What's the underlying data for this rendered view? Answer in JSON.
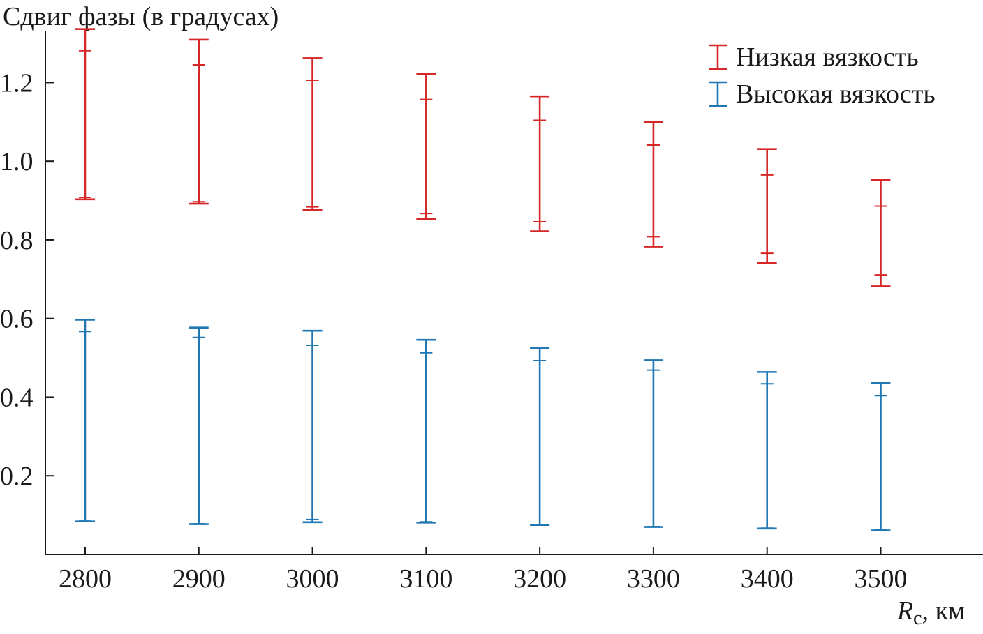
{
  "chart_data": {
    "type": "errorbar",
    "title": "",
    "ylabel": "Сдвиг фазы (в градусах)",
    "xlabel": {
      "symbol": "R",
      "subscript": "c",
      "unit": ", км"
    },
    "x": [
      2800,
      2900,
      3000,
      3100,
      3200,
      3300,
      3400,
      3500
    ],
    "x_ticks": [
      2800,
      2900,
      3000,
      3100,
      3200,
      3300,
      3400,
      3500
    ],
    "y_ticks": [
      0.2,
      0.4,
      0.6,
      0.8,
      1.0,
      1.2
    ],
    "y_tick_labels": [
      "0.2",
      "0.4",
      "0.6",
      "0.8",
      "1.0",
      "1.2"
    ],
    "xlim": [
      2765,
      3590
    ],
    "ylim": [
      0.0,
      1.41
    ],
    "grid": false,
    "legend_position": "top-right",
    "series": [
      {
        "name": "Низкая вязкость",
        "color": "#d62728",
        "outer_low": [
          0.903,
          0.892,
          0.876,
          0.853,
          0.822,
          0.783,
          0.741,
          0.682
        ],
        "outer_high": [
          1.336,
          1.309,
          1.262,
          1.222,
          1.165,
          1.1,
          1.031,
          0.953
        ],
        "inner_low": [
          0.908,
          0.897,
          0.884,
          0.867,
          0.846,
          0.808,
          0.766,
          0.711
        ],
        "inner_high": [
          1.281,
          1.245,
          1.206,
          1.157,
          1.104,
          1.041,
          0.965,
          0.886
        ]
      },
      {
        "name": "Высокая вязкость",
        "color": "#1f77b4",
        "outer_low": [
          0.084,
          0.077,
          0.082,
          0.081,
          0.075,
          0.07,
          0.066,
          0.061
        ],
        "outer_high": [
          0.597,
          0.577,
          0.569,
          0.546,
          0.525,
          0.494,
          0.464,
          0.436
        ],
        "inner_low": [
          0.085,
          0.078,
          0.089,
          0.083,
          0.076,
          0.071,
          0.067,
          0.062
        ],
        "inner_high": [
          0.567,
          0.552,
          0.532,
          0.513,
          0.493,
          0.469,
          0.434,
          0.404
        ]
      }
    ]
  }
}
